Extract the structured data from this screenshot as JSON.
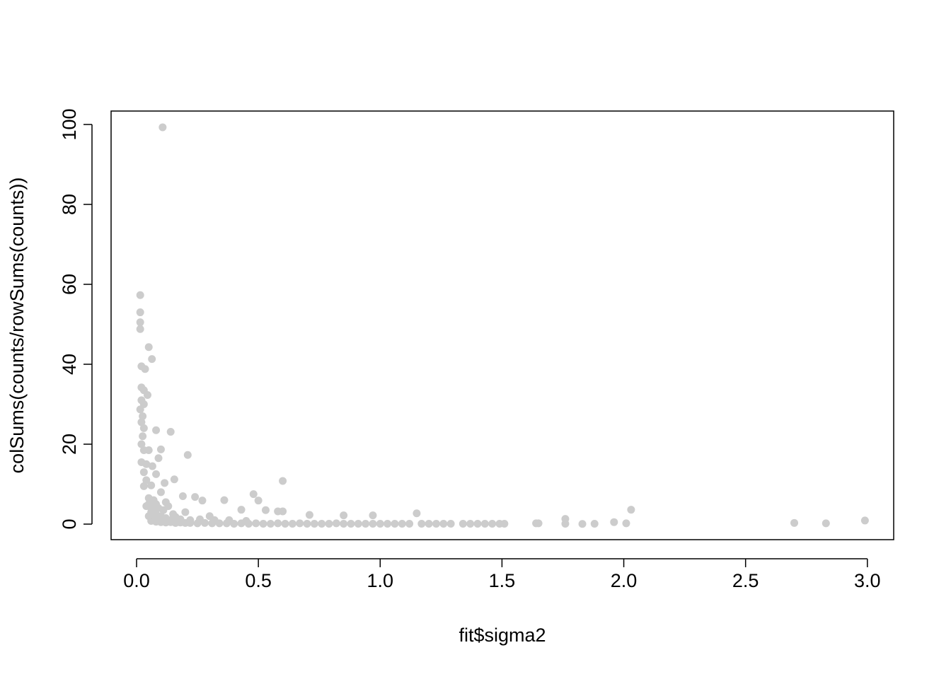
{
  "chart_data": {
    "type": "scatter",
    "x_label": "fit$sigma2",
    "y_label": "colSums(counts/rowSums(counts))",
    "color": "#cccccc",
    "xlim": [
      -0.1046,
      3.108
    ],
    "ylim": [
      -3.89,
      103.36
    ],
    "xticks": [
      {
        "value": 0,
        "label": "0.0"
      },
      0.5,
      {
        "value": 1,
        "label": "1.0"
      },
      1.5,
      {
        "value": 2,
        "label": "2.0"
      },
      2.5,
      {
        "value": 3,
        "label": "3.0"
      }
    ],
    "yticks": [
      0,
      20,
      40,
      60,
      80,
      100
    ],
    "x": [
      0.107,
      0.015,
      0.015,
      0.015,
      0.015,
      0.05,
      0.063,
      0.02,
      0.035,
      0.02,
      0.03,
      0.045,
      0.02,
      0.03,
      0.015,
      0.025,
      0.02,
      0.03,
      0.08,
      0.14,
      0.025,
      0.02,
      0.03,
      0.05,
      0.1,
      0.21,
      0.09,
      0.02,
      0.04,
      0.065,
      0.03,
      0.08,
      0.155,
      0.04,
      0.6,
      0.115,
      0.03,
      0.06,
      0.48,
      0.1,
      0.19,
      0.24,
      0.36,
      0.27,
      0.5,
      0.05,
      0.08,
      0.13,
      0.43,
      0.53,
      2.03,
      0.58,
      0.6,
      1.15,
      0.85,
      0.97,
      0.71,
      1.76,
      2.99,
      0.2,
      0.3,
      0.15,
      0.06,
      0.07,
      0.09,
      1.64,
      1.65,
      1.76,
      1.83,
      1.88,
      1.96,
      2.01,
      2.7,
      2.83,
      0.06,
      0.08,
      0.1,
      0.12,
      0.14,
      0.16,
      0.18,
      0.2,
      0.22,
      0.25,
      0.28,
      0.31,
      0.34,
      0.37,
      0.4,
      0.43,
      0.46,
      0.49,
      0.52,
      0.55,
      0.58,
      0.61,
      0.64,
      0.67,
      0.7,
      0.73,
      0.76,
      0.79,
      0.82,
      0.85,
      0.88,
      0.91,
      0.94,
      0.97,
      1.0,
      1.03,
      1.06,
      1.09,
      1.12,
      1.17,
      1.2,
      1.23,
      1.26,
      1.29,
      1.34,
      1.37,
      1.4,
      1.43,
      1.46,
      1.49,
      1.51,
      0.05,
      0.06,
      0.07,
      0.08,
      0.1,
      0.11,
      0.12,
      0.14,
      0.16,
      0.18,
      0.22,
      0.26,
      0.32,
      0.38,
      0.45,
      0.05,
      0.04,
      0.07,
      0.09,
      0.12
    ],
    "values": [
      99.3,
      57.3,
      53,
      50.5,
      48.8,
      44.3,
      41.3,
      39.5,
      38.8,
      34.2,
      33.5,
      32.3,
      31,
      30,
      28.7,
      27,
      25.5,
      24,
      23.5,
      23.1,
      22,
      20,
      18.5,
      18.5,
      18.7,
      17.3,
      16.5,
      15.5,
      15,
      14.5,
      13,
      12.5,
      11.2,
      11,
      10.8,
      10.3,
      9.5,
      9.7,
      7.5,
      8,
      7,
      6.8,
      6,
      5.9,
      5.9,
      6.5,
      5,
      4.5,
      3.6,
      3.5,
      3.6,
      3.2,
      3.2,
      2.7,
      2.2,
      2.2,
      2.3,
      1.3,
      0.9,
      3,
      2,
      2.5,
      3,
      1.5,
      1,
      0.2,
      0.2,
      0.1,
      0.05,
      0.1,
      0.5,
      0.2,
      0.3,
      0.2,
      0.8,
      0.6,
      0.5,
      0.4,
      0.5,
      0.3,
      0.4,
      0.3,
      0.3,
      0.2,
      0.3,
      0.2,
      0.2,
      0.2,
      0.1,
      0.2,
      0.1,
      0.2,
      0.1,
      0.1,
      0.2,
      0.1,
      0.1,
      0.2,
      0.1,
      0.1,
      0.1,
      0.1,
      0.2,
      0.1,
      0.1,
      0.1,
      0.1,
      0.1,
      0.1,
      0.1,
      0.1,
      0.1,
      0.1,
      0.1,
      0.1,
      0.1,
      0.1,
      0.1,
      0.1,
      0.1,
      0.1,
      0.1,
      0.1,
      0.1,
      0.1,
      5,
      4,
      3.5,
      2.5,
      2,
      3.5,
      1.5,
      1,
      1.8,
      1.2,
      1,
      1.2,
      1,
      1,
      0.8,
      2,
      4.5,
      6,
      4,
      5.5
    ]
  }
}
